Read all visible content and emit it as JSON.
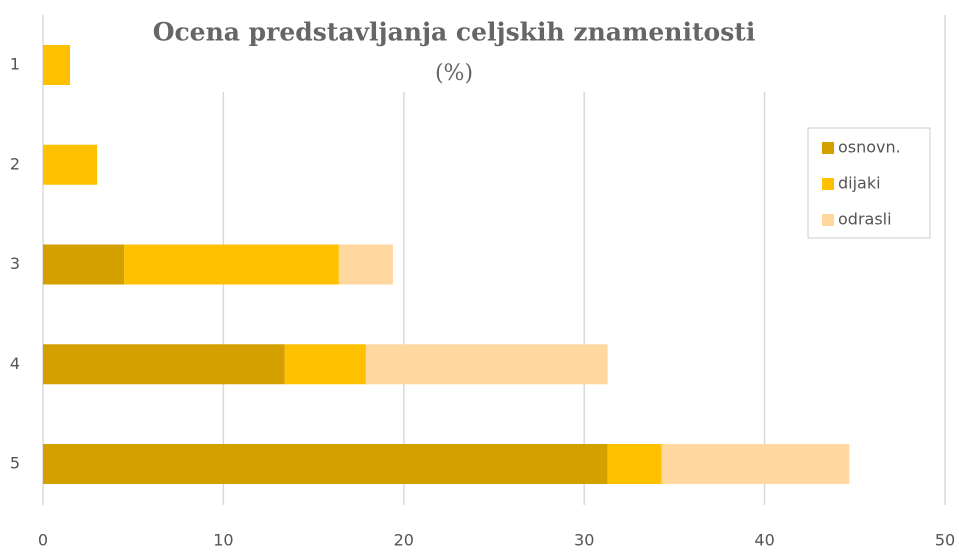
{
  "chart_data": {
    "type": "stacked-barh",
    "title": "Ocena predstavljanja celjskih znamenitosti",
    "subtitle": "(%)",
    "categories": [
      "1",
      "2",
      "3",
      "4",
      "5"
    ],
    "series": [
      {
        "name": "osnovn.",
        "color": "#d4a000",
        "values": [
          0,
          0,
          4.5,
          13.4,
          31.3
        ]
      },
      {
        "name": "dijaki",
        "color": "#ffc000",
        "values": [
          1.5,
          3,
          11.9,
          4.5,
          3
        ]
      },
      {
        "name": "odrasli",
        "color": "#ffd8a0",
        "values": [
          0,
          0,
          3,
          13.4,
          10.4
        ]
      }
    ],
    "xlim": [
      0,
      50
    ],
    "xticks": [
      0,
      10,
      20,
      30,
      40,
      50
    ],
    "grid": true,
    "legend": "right"
  }
}
